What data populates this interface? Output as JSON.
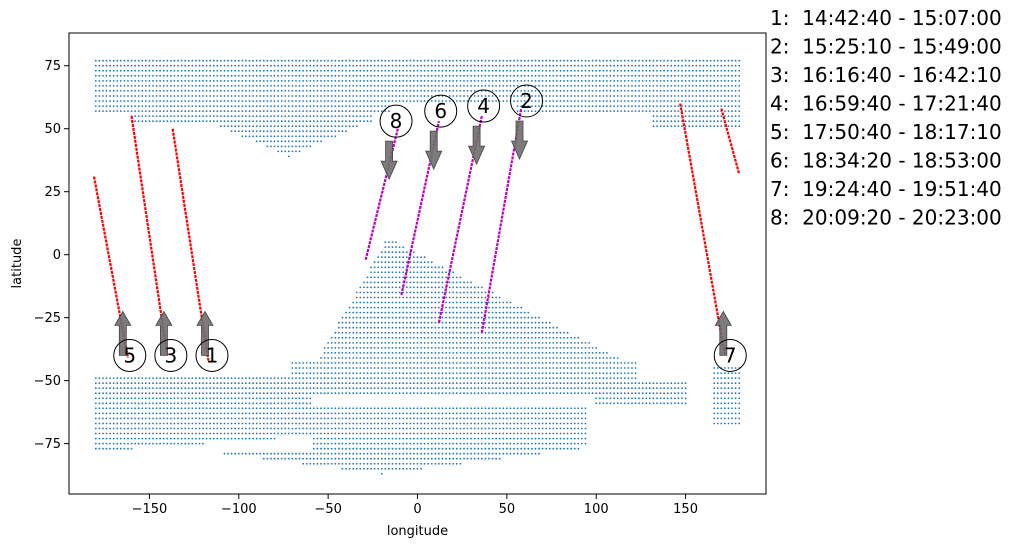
{
  "chart_data": {
    "type": "scatter",
    "xlabel": "longitude",
    "ylabel": "latitude",
    "xlim": [
      -195,
      195
    ],
    "ylim": [
      -95,
      88
    ],
    "xticks": [
      -150,
      -100,
      -50,
      0,
      50,
      100,
      150
    ],
    "yticks": [
      -75,
      -50,
      -25,
      0,
      25,
      50,
      75
    ],
    "grid": false,
    "colors": {
      "coverage": "#1f77b4",
      "descending_track": "#ff0000",
      "ascending_track": "#bf00bf",
      "arrow": "#6e6e6e"
    },
    "coverage_dots_description": "ground-coverage point grid",
    "tracks": [
      {
        "id": "1",
        "direction": "descending",
        "start": [
          -137,
          50
        ],
        "end": [
          -117,
          -42
        ]
      },
      {
        "id": "2",
        "direction": "ascending",
        "start": [
          36,
          -31
        ],
        "end": [
          58,
          58
        ]
      },
      {
        "id": "3",
        "direction": "descending",
        "start": [
          -160,
          55
        ],
        "end": [
          -140,
          -40
        ]
      },
      {
        "id": "4",
        "direction": "ascending",
        "start": [
          12,
          -27
        ],
        "end": [
          36,
          55
        ]
      },
      {
        "id": "5",
        "direction": "descending",
        "start": [
          -181,
          31
        ],
        "end": [
          -162,
          -41
        ]
      },
      {
        "id": "6",
        "direction": "ascending",
        "start": [
          -9,
          -16
        ],
        "end": [
          12,
          53
        ]
      },
      {
        "id": "7a",
        "direction": "descending",
        "start": [
          147,
          60
        ],
        "end": [
          172,
          -40
        ]
      },
      {
        "id": "7b",
        "direction": "descending",
        "start": [
          170,
          58
        ],
        "end": [
          180,
          32
        ]
      },
      {
        "id": "8",
        "direction": "ascending",
        "start": [
          -29,
          -2
        ],
        "end": [
          -11,
          50
        ]
      }
    ],
    "markers": [
      {
        "label": "1",
        "x": -115,
        "y": -40,
        "arrow": "up"
      },
      {
        "label": "2",
        "x": 61,
        "y": 61,
        "arrow": "down"
      },
      {
        "label": "3",
        "x": -138,
        "y": -40,
        "arrow": "up"
      },
      {
        "label": "4",
        "x": 37,
        "y": 59,
        "arrow": "down"
      },
      {
        "label": "5",
        "x": -161,
        "y": -40,
        "arrow": "up"
      },
      {
        "label": "6",
        "x": 13,
        "y": 57,
        "arrow": "down"
      },
      {
        "label": "7",
        "x": 175,
        "y": -40,
        "arrow": "up"
      },
      {
        "label": "8",
        "x": -12,
        "y": 53,
        "arrow": "down"
      }
    ],
    "legend": [
      "1:  14:42:40 - 15:07:00",
      "2:  15:25:10 - 15:49:00",
      "3:  16:16:40 - 16:42:10",
      "4:  16:59:40 - 17:21:40",
      "5:  17:50:40 - 18:17:10",
      "6:  18:34:20 - 18:53:00",
      "7:  19:24:40 - 19:51:40",
      "8:  20:09:20 - 20:23:00"
    ]
  }
}
